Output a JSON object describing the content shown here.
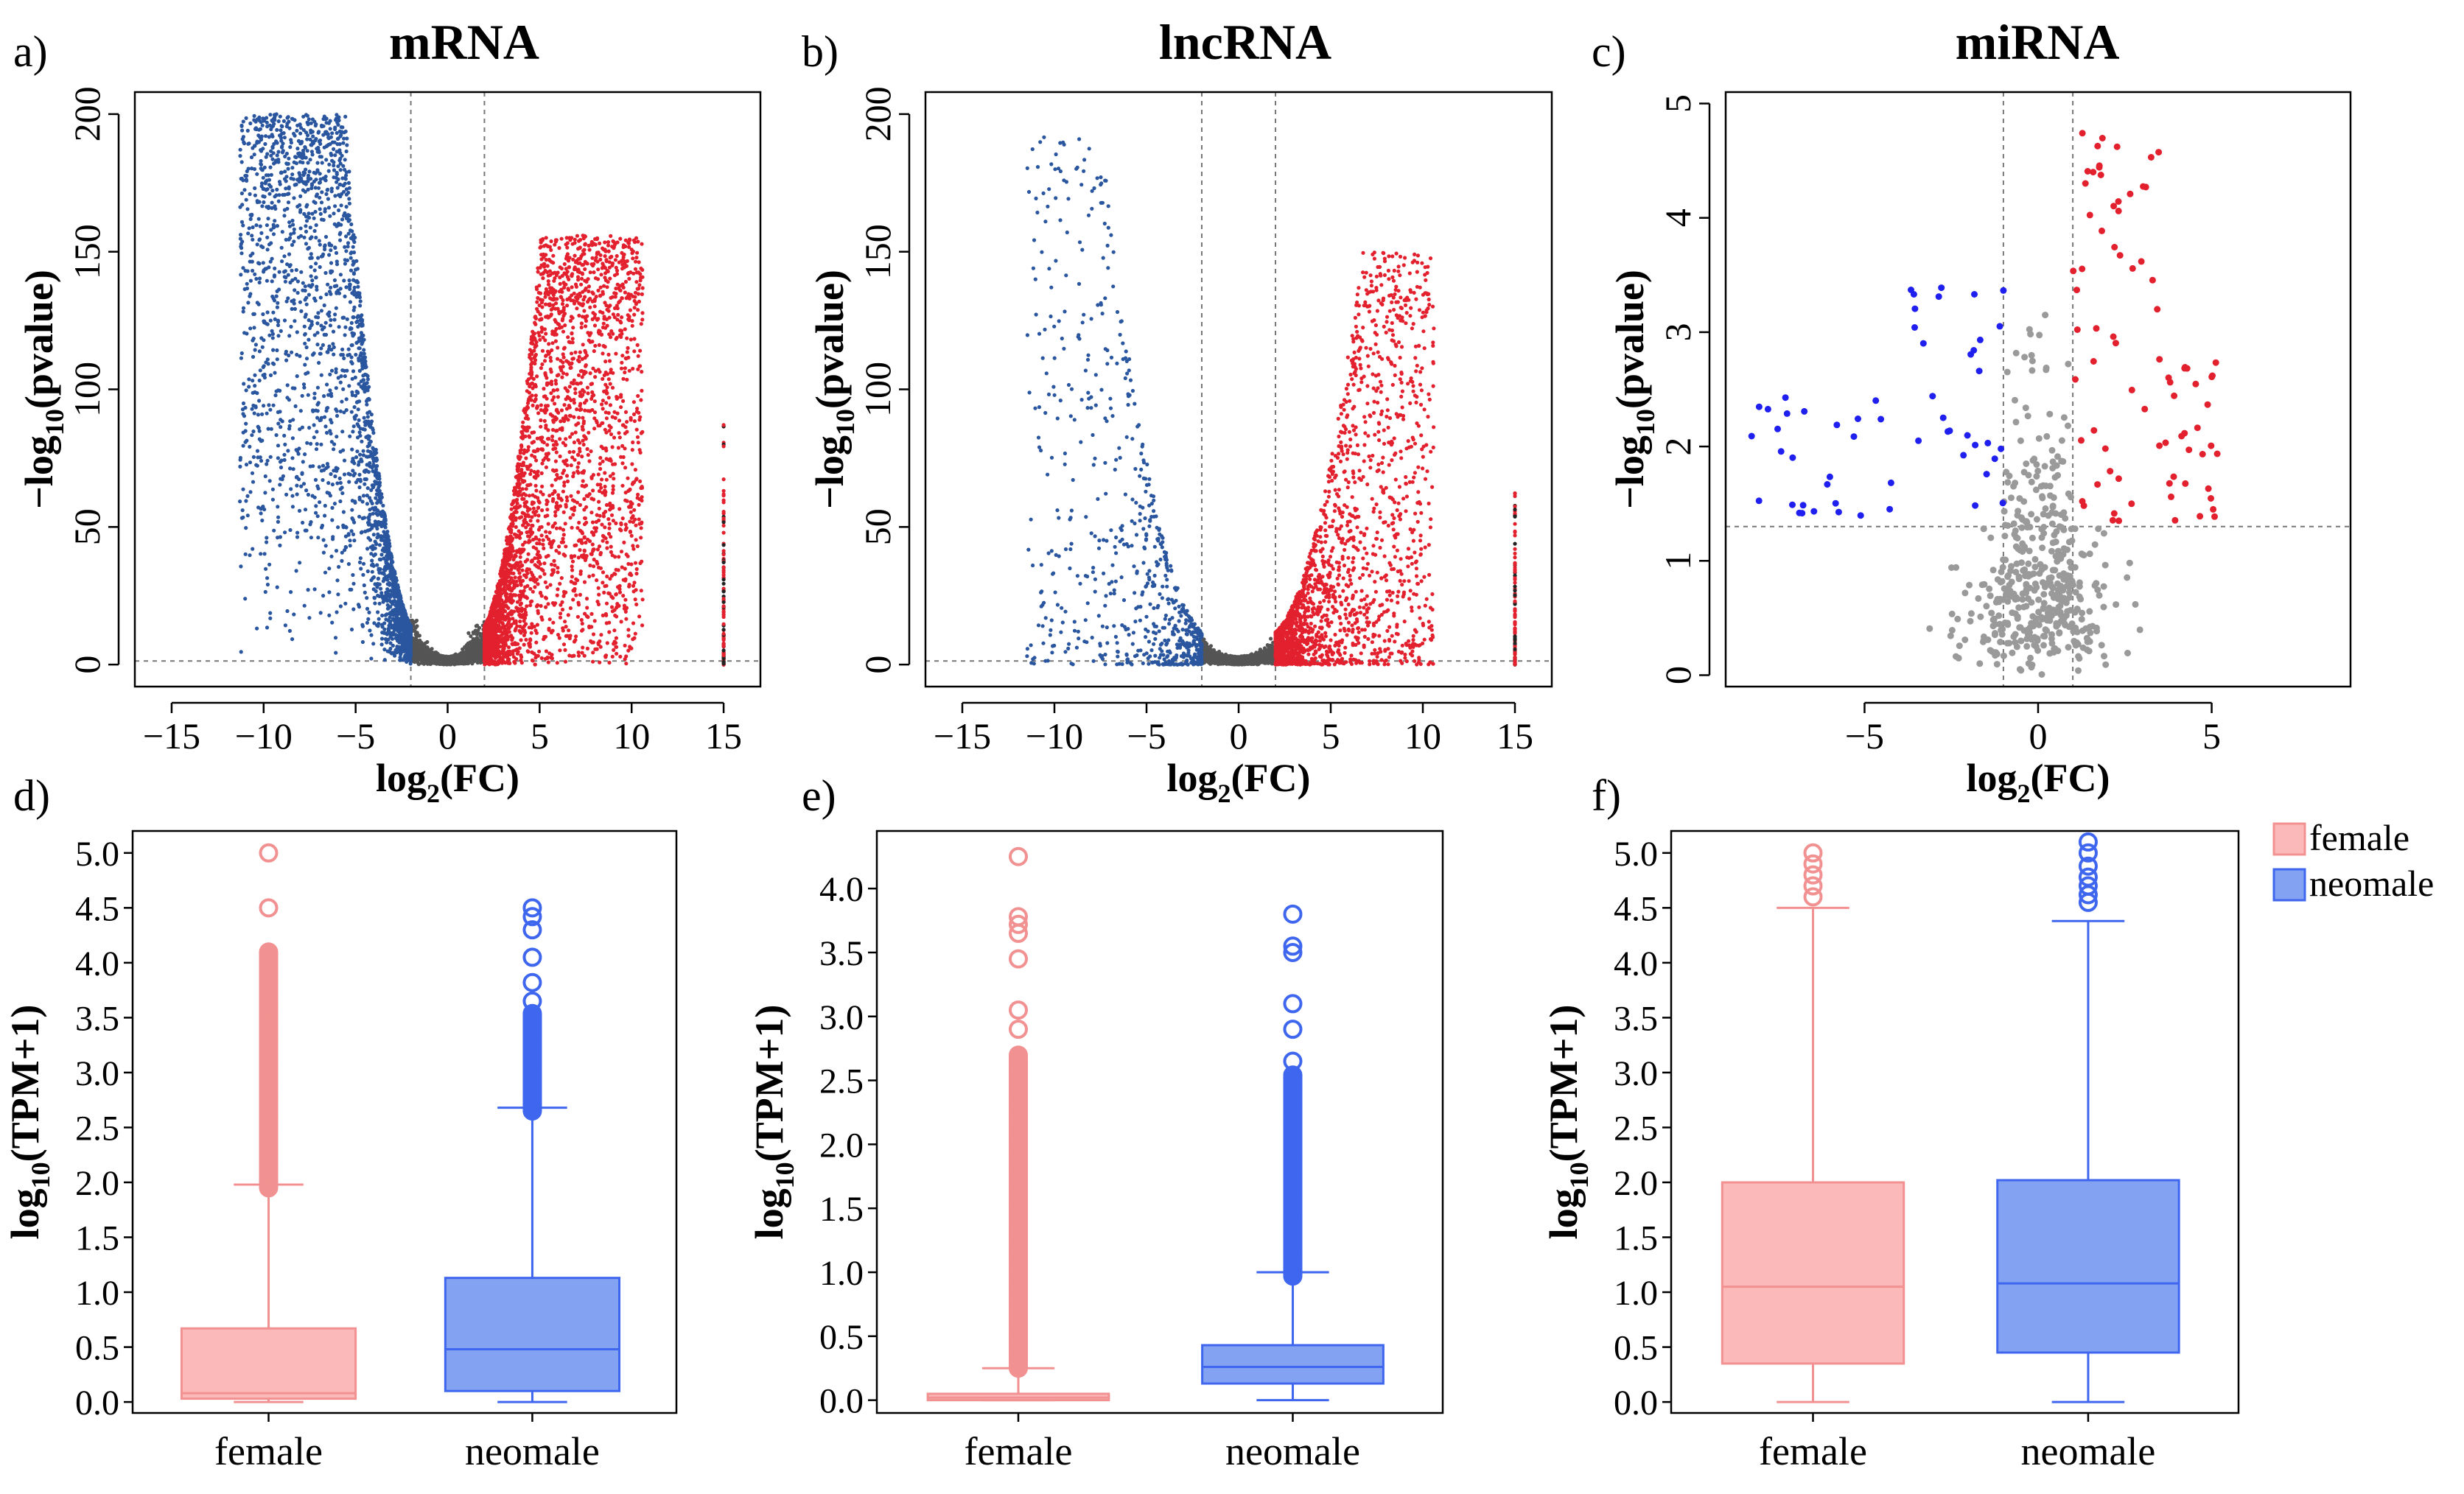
{
  "colors": {
    "up": "#e3202e",
    "down": "#2a569f",
    "ns": "#555555",
    "ns_light": "#9a9a9a",
    "mirna_down": "#1f1ff0",
    "female_fill": "#fcb9b9",
    "female_line": "#f29191",
    "neomale_fill": "#84a2f2",
    "neomale_line": "#3e66ee"
  },
  "chart_data": [
    {
      "panel_label": "a)",
      "type": "scatter",
      "title": "mRNA",
      "xlabel_main": "log",
      "xlabel_sub": "2",
      "xlabel_rest": "(FC)",
      "ylabel_main": "−log",
      "ylabel_sub": "10",
      "ylabel_rest": "(pvalue)",
      "xlim": [
        -17,
        17
      ],
      "ylim": [
        -8,
        208
      ],
      "xticks": [
        -15,
        -10,
        -5,
        0,
        5,
        10,
        15
      ],
      "yticks": [
        0,
        50,
        100,
        150,
        200
      ],
      "fc_threshold": 2,
      "p_threshold": 1.3,
      "max_y": 200,
      "steepness": 20,
      "n_down": 2600,
      "n_up": 3000,
      "n_ns": 1500,
      "outlier_x": 15,
      "outlier_max": 88,
      "series": [
        "up",
        "down",
        "ns"
      ]
    },
    {
      "panel_label": "b)",
      "type": "scatter",
      "title": "lncRNA",
      "xlabel_main": "log",
      "xlabel_sub": "2",
      "xlabel_rest": "(FC)",
      "ylabel_main": "−log",
      "ylabel_sub": "10",
      "ylabel_rest": "(pvalue)",
      "xlim": [
        -17,
        17
      ],
      "ylim": [
        -8,
        208
      ],
      "xticks": [
        -15,
        -10,
        -5,
        0,
        5,
        10,
        15
      ],
      "yticks": [
        0,
        50,
        100,
        150,
        200
      ],
      "fc_threshold": 2,
      "p_threshold": 1.3,
      "max_y": 192,
      "steepness": 9,
      "n_down": 700,
      "n_up": 1800,
      "n_ns": 1200,
      "outlier_x": 15,
      "outlier_max": 64,
      "series": [
        "up",
        "down",
        "ns"
      ]
    },
    {
      "panel_label": "c)",
      "type": "scatter",
      "title": "miRNA",
      "xlabel_main": "log",
      "xlabel_sub": "2",
      "xlabel_rest": "(FC)",
      "ylabel_main": "−log",
      "ylabel_sub": "10",
      "ylabel_rest": "(pvalue)",
      "xlim": [
        -9,
        9
      ],
      "ylim": [
        -0.1,
        5.1
      ],
      "xticks": [
        -5,
        0,
        5
      ],
      "yticks": [
        0,
        1,
        2,
        3,
        4,
        5
      ],
      "fc_threshold": 1,
      "p_threshold": 1.3,
      "max_y": 4.75,
      "n_down": 55,
      "n_up": 80,
      "n_ns": 450,
      "series": [
        "up",
        "down",
        "ns"
      ]
    },
    {
      "panel_label": "d)",
      "type": "box",
      "ylabel_main": "log",
      "ylabel_sub": "10",
      "ylabel_rest": "(TPM+1)",
      "categories": [
        "female",
        "neomale"
      ],
      "ylim": [
        -0.1,
        5.2
      ],
      "yticks": [
        "0.0",
        "0.5",
        "1.0",
        "1.5",
        "2.0",
        "2.5",
        "3.0",
        "3.5",
        "4.0",
        "4.5",
        "5.0"
      ],
      "boxes": [
        {
          "name": "female",
          "min": 0.0,
          "q1": 0.03,
          "median": 0.08,
          "q3": 0.67,
          "max": 1.98,
          "outlier_dense_range": [
            1.95,
            4.1
          ],
          "outliers": [
            4.5,
            5.0
          ]
        },
        {
          "name": "neomale",
          "min": 0.0,
          "q1": 0.1,
          "median": 0.48,
          "q3": 1.13,
          "max": 2.68,
          "outlier_dense_range": [
            2.65,
            3.55
          ],
          "outliers": [
            3.65,
            3.82,
            4.05,
            4.3,
            4.42,
            4.5
          ]
        }
      ]
    },
    {
      "panel_label": "e)",
      "type": "box",
      "ylabel_main": "log",
      "ylabel_sub": "10",
      "ylabel_rest": "(TPM+1)",
      "categories": [
        "female",
        "neomale"
      ],
      "ylim": [
        -0.1,
        4.45
      ],
      "yticks": [
        "0.0",
        "0.5",
        "1.0",
        "1.5",
        "2.0",
        "2.5",
        "3.0",
        "3.5",
        "4.0"
      ],
      "boxes": [
        {
          "name": "female",
          "min": 0.0,
          "q1": 0.0,
          "median": 0.02,
          "q3": 0.05,
          "max": 0.25,
          "outlier_dense_range": [
            0.25,
            2.7
          ],
          "outliers": [
            2.9,
            3.05,
            3.45,
            3.65,
            3.72,
            3.78,
            4.25
          ]
        },
        {
          "name": "neomale",
          "min": 0.0,
          "q1": 0.13,
          "median": 0.26,
          "q3": 0.43,
          "max": 1.0,
          "outlier_dense_range": [
            0.97,
            2.55
          ],
          "outliers": [
            2.65,
            2.9,
            3.1,
            3.5,
            3.55,
            3.8
          ]
        }
      ]
    },
    {
      "panel_label": "f)",
      "type": "box",
      "ylabel_main": "log",
      "ylabel_sub": "10",
      "ylabel_rest": "(TPM+1)",
      "categories": [
        "female",
        "neomale"
      ],
      "ylim": [
        -0.1,
        5.2
      ],
      "yticks": [
        "0.0",
        "0.5",
        "1.0",
        "1.5",
        "2.0",
        "2.5",
        "3.0",
        "3.5",
        "4.0",
        "4.5",
        "5.0"
      ],
      "boxes": [
        {
          "name": "female",
          "min": 0.0,
          "q1": 0.35,
          "median": 1.05,
          "q3": 2.0,
          "max": 4.5,
          "outlier_dense_range": null,
          "outliers": [
            4.6,
            4.7,
            4.8,
            4.9,
            5.0
          ]
        },
        {
          "name": "neomale",
          "min": 0.0,
          "q1": 0.45,
          "median": 1.08,
          "q3": 2.02,
          "max": 4.38,
          "outlier_dense_range": null,
          "outliers": [
            4.55,
            4.62,
            4.7,
            4.78,
            4.88,
            5.0,
            5.1
          ]
        }
      ]
    }
  ],
  "legend": {
    "items": [
      {
        "label": "female",
        "color_key": "female"
      },
      {
        "label": "neomale",
        "color_key": "neomale"
      }
    ]
  }
}
